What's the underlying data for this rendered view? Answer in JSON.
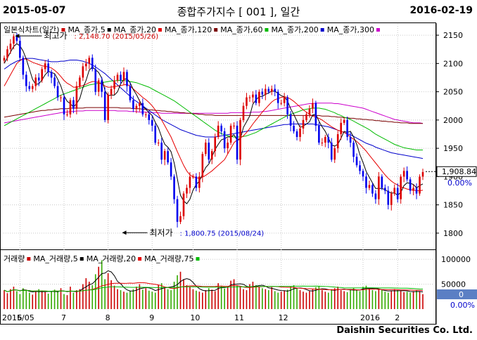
{
  "header": {
    "start_date": "2015-05-07",
    "title": "종합주가지수 [ 001 ], 일간",
    "end_date": "2016-02-19"
  },
  "footer": {
    "brand": "Daishin Securities Co. Ltd."
  },
  "price_legend": [
    {
      "label": "일본식차트(일간)",
      "color": "#cc0000"
    },
    {
      "label": "MA_종가,5",
      "color": "#000000"
    },
    {
      "label": "MA_종가,20",
      "color": "#e60000"
    },
    {
      "label": "MA_종가,120",
      "color": "#7a0000"
    },
    {
      "label": "MA_종가,60",
      "color": "#00bb00"
    },
    {
      "label": "MA_종가,200",
      "color": "#0000cc"
    },
    {
      "label": "MA_종가,300",
      "color": "#cc00cc"
    }
  ],
  "volume_legend": [
    {
      "label": "거래량",
      "color": "#cc0000"
    },
    {
      "label": "MA_거래량,5",
      "color": "#000000"
    },
    {
      "label": "MA_거래량,20",
      "color": "#e60000"
    },
    {
      "label": "MA_거래량,75",
      "color": "#00bb00"
    }
  ],
  "annotations": {
    "high": "최고가 : 2,148.70 (2015/05/26)",
    "low": "최저가 : 1,800.75 (2015/08/24)"
  },
  "price_tag": {
    "value": "1,908.84",
    "change": "0.00%"
  },
  "volume_tag": {
    "value": "0",
    "change": "0.00%"
  },
  "chart_data": {
    "type": "line",
    "title": "종합주가지수 [ 001 ], 일간",
    "price_axis": {
      "ylim": [
        1775,
        2165
      ],
      "ticks": [
        1800,
        1850,
        1900,
        1950,
        2000,
        2050,
        2100,
        2150
      ]
    },
    "volume_axis": {
      "ticks": [
        "100000",
        "50000"
      ]
    },
    "x_ticks": [
      "2015/05",
      "6",
      "7",
      "8",
      "9",
      "10",
      "11",
      "12",
      "2016",
      "2"
    ],
    "grid": true,
    "close": [
      2110,
      2125,
      2135,
      2148,
      2140,
      2110,
      2080,
      2060,
      2055,
      2060,
      2075,
      2070,
      2090,
      2100,
      2085,
      2075,
      2060,
      2040,
      2040,
      2010,
      2010,
      2035,
      2020,
      2060,
      2075,
      2095,
      2100,
      2110,
      2090,
      2050,
      2070,
      2050,
      2000,
      2045,
      2055,
      2070,
      2080,
      2070,
      2085,
      2060,
      2035,
      2020,
      2025,
      2030,
      2010,
      2010,
      2000,
      1990,
      1960,
      1960,
      1930,
      1945,
      1925,
      1900,
      1860,
      1820,
      1830,
      1870,
      1880,
      1900,
      1900,
      1880,
      1900,
      1940,
      1960,
      1930,
      1945,
      1970,
      1990,
      1980,
      1950,
      1960,
      1990,
      1990,
      1930,
      2000,
      2025,
      2040,
      2040,
      2045,
      2030,
      2050,
      2045,
      2055,
      2050,
      2055,
      2050,
      2030,
      2030,
      2040,
      2010,
      1990,
      1980,
      1970,
      1985,
      2000,
      2010,
      2020,
      2030,
      1990,
      1960,
      1960,
      1970,
      1960,
      1930,
      1950,
      1975,
      1995,
      2000,
      1970,
      1960,
      1935,
      1920,
      1910,
      1900,
      1880,
      1885,
      1870,
      1860,
      1900,
      1880,
      1875,
      1850,
      1870,
      1880,
      1860,
      1900,
      1910,
      1895,
      1875,
      1880,
      1870,
      1900,
      1908
    ],
    "series": [
      {
        "name": "MA_종가,5",
        "values": [
          2100,
          2110,
          2120,
          2130,
          2135,
          2131,
          2122,
          2108,
          2090,
          2072,
          2063,
          2064,
          2071,
          2080,
          2086,
          2084,
          2082,
          2072,
          2060,
          2043,
          2033,
          2029,
          2023,
          2029,
          2038,
          2057,
          2070,
          2088,
          2094,
          2089,
          2084,
          2074,
          2052,
          2043,
          2044,
          2044,
          2050,
          2064,
          2072,
          2073,
          2066,
          2054,
          2045,
          2034,
          2024,
          2019,
          2013,
          2008,
          1996,
          1986,
          1970,
          1957,
          1952,
          1944,
          1924,
          1896,
          1867,
          1857,
          1852,
          1860,
          1876,
          1886,
          1892,
          1904,
          1916,
          1922,
          1935,
          1948,
          1957,
          1965,
          1967,
          1970,
          1970,
          1974,
          1964,
          1966,
          1987,
          1997,
          2007,
          2028,
          2036,
          2041,
          2042,
          2045,
          2048,
          2051,
          2051,
          2047,
          2043,
          2041,
          2034,
          2020,
          2010,
          1998,
          1987,
          1989,
          1993,
          1997,
          2009,
          2010,
          1998,
          1988,
          1980,
          1968,
          1956,
          1954,
          1957,
          1968,
          1980,
          1978,
          1980,
          1970,
          1957,
          1939,
          1925,
          1909,
          1899,
          1889,
          1879,
          1879,
          1879,
          1877,
          1873,
          1871,
          1871,
          1867,
          1872,
          1884,
          1889,
          1888,
          1886,
          1880,
          1884,
          1887
        ]
      },
      {
        "name": "MA_종가,20",
        "values": [
          2060,
          2070,
          2080,
          2090,
          2100,
          2105,
          2108,
          2108,
          2105,
          2102,
          2100,
          2098,
          2096,
          2095,
          2094,
          2092,
          2088,
          2083,
          2077,
          2070,
          2065,
          2062,
          2058,
          2058,
          2059,
          2061,
          2063,
          2066,
          2068,
          2068,
          2066,
          2063,
          2060,
          2058,
          2058,
          2059,
          2060,
          2061,
          2062,
          2063,
          2060,
          2055,
          2050,
          2045,
          2040,
          2036,
          2031,
          2025,
          2018,
          2010,
          2000,
          1990,
          1980,
          1970,
          1957,
          1944,
          1932,
          1920,
          1910,
          1903,
          1900,
          1898,
          1897,
          1899,
          1902,
          1906,
          1910,
          1915,
          1920,
          1925,
          1930,
          1940,
          1950,
          1960,
          1965,
          1968,
          1972,
          1978,
          1985,
          1993,
          2000,
          2007,
          2014,
          2020,
          2026,
          2032,
          2036,
          2038,
          2040,
          2041,
          2040,
          2037,
          2033,
          2028,
          2023,
          2018,
          2014,
          2010,
          2007,
          2005,
          2003,
          2000,
          1996,
          1992,
          1988,
          1985,
          1982,
          1980,
          1978,
          1975,
          1970,
          1966,
          1962,
          1957,
          1951,
          1945,
          1938,
          1931,
          1924,
          1917,
          1910,
          1903,
          1897,
          1892,
          1888,
          1885,
          1882,
          1880,
          1878,
          1877,
          1876,
          1875,
          1875,
          1876
        ]
      },
      {
        "name": "MA_종가,60",
        "values": [
          1990,
          1993,
          1996,
          1999,
          2002,
          2005,
          2008,
          2011,
          2014,
          2017,
          2020,
          2023,
          2026,
          2029,
          2032,
          2035,
          2038,
          2041,
          2044,
          2046,
          2048,
          2050,
          2052,
          2054,
          2056,
          2058,
          2060,
          2062,
          2063,
          2064,
          2065,
          2066,
          2067,
          2068,
          2069,
          2069,
          2070,
          2070,
          2070,
          2069,
          2068,
          2067,
          2066,
          2064,
          2062,
          2060,
          2058,
          2055,
          2052,
          2049,
          2046,
          2043,
          2040,
          2037,
          2034,
          2030,
          2026,
          2022,
          2018,
          2014,
          2010,
          2006,
          2002,
          1998,
          1994,
          1990,
          1986,
          1982,
          1979,
          1976,
          1974,
          1972,
          1971,
          1970,
          1970,
          1970,
          1971,
          1972,
          1974,
          1976,
          1978,
          1981,
          1984,
          1987,
          1990,
          1993,
          1996,
          1999,
          2002,
          2005,
          2008,
          2010,
          2012,
          2014,
          2016,
          2018,
          2019,
          2020,
          2021,
          2021,
          2021,
          2020,
          2019,
          2017,
          2015,
          2013,
          2010,
          2008,
          2005,
          2003,
          2001,
          1998,
          1995,
          1992,
          1989,
          1986,
          1983,
          1979,
          1975,
          1972,
          1969,
          1966,
          1963,
          1960,
          1957,
          1955,
          1953,
          1951,
          1950,
          1949,
          1948,
          1947,
          1947,
          1947
        ]
      },
      {
        "name": "MA_종가,120",
        "values": [
          2005,
          2006,
          2007,
          2008,
          2009,
          2010,
          2011,
          2012,
          2013,
          2014,
          2015,
          2016,
          2017,
          2017,
          2018,
          2018,
          2019,
          2019,
          2020,
          2020,
          2020,
          2021,
          2021,
          2021,
          2021,
          2021,
          2022,
          2022,
          2022,
          2022,
          2022,
          2022,
          2022,
          2022,
          2022,
          2022,
          2022,
          2021,
          2021,
          2021,
          2021,
          2020,
          2020,
          2020,
          2019,
          2019,
          2018,
          2018,
          2017,
          2017,
          2016,
          2016,
          2015,
          2015,
          2014,
          2014,
          2013,
          2013,
          2012,
          2012,
          2011,
          2011,
          2010,
          2010,
          2009,
          2009,
          2009,
          2008,
          2008,
          2008,
          2008,
          2008,
          2008,
          2008,
          2008,
          2008,
          2008,
          2008,
          2008,
          2008,
          2008,
          2008,
          2008,
          2008,
          2008,
          2008,
          2008,
          2008,
          2008,
          2008,
          2008,
          2008,
          2008,
          2008,
          2008,
          2008,
          2008,
          2008,
          2008,
          2008,
          2008,
          2007,
          2007,
          2007,
          2006,
          2006,
          2005,
          2005,
          2004,
          2004,
          2003,
          2003,
          2002,
          2002,
          2001,
          2001,
          2000,
          2000,
          1999,
          1999,
          1998,
          1998,
          1997,
          1997,
          1996,
          1996,
          1995,
          1995,
          1995,
          1994,
          1994,
          1994,
          1994,
          1994
        ]
      },
      {
        "name": "MA_종가,200",
        "values": [
          2090,
          2094,
          2098,
          2101,
          2104,
          2106,
          2108,
          2109,
          2109,
          2109,
          2108,
          2107,
          2106,
          2105,
          2104,
          2103,
          2103,
          2103,
          2104,
          2104,
          2105,
          2106,
          2106,
          2106,
          2105,
          2104,
          2102,
          2100,
          2097,
          2094,
          2090,
          2086,
          2082,
          2077,
          2072,
          2067,
          2062,
          2057,
          2052,
          2047,
          2042,
          2037,
          2033,
          2029,
          2025,
          2021,
          2017,
          2013,
          2009,
          2005,
          2001,
          1998,
          1995,
          1992,
          1989,
          1986,
          1983,
          1981,
          1979,
          1977,
          1975,
          1973,
          1972,
          1971,
          1970,
          1970,
          1970,
          1970,
          1971,
          1972,
          1973,
          1974,
          1975,
          1976,
          1977,
          1978,
          1979,
          1980,
          1981,
          1982,
          1983,
          1984,
          1985,
          1986,
          1987,
          1988,
          1989,
          1990,
          1991,
          1992,
          1992,
          1993,
          1993,
          1993,
          1993,
          1993,
          1993,
          1993,
          1993,
          1992,
          1991,
          1990,
          1989,
          1988,
          1986,
          1984,
          1982,
          1980,
          1978,
          1976,
          1974,
          1971,
          1968,
          1965,
          1962,
          1959,
          1957,
          1955,
          1952,
          1950,
          1948,
          1946,
          1944,
          1942,
          1941,
          1940,
          1939,
          1938,
          1937,
          1936,
          1935,
          1934,
          1933,
          1932
        ]
      },
      {
        "name": "MA_종가,300",
        "values": [
          1995,
          1996,
          1997,
          1998,
          1999,
          2000,
          2001,
          2002,
          2003,
          2004,
          2005,
          2006,
          2007,
          2008,
          2009,
          2010,
          2011,
          2012,
          2013,
          2014,
          2014,
          2015,
          2015,
          2016,
          2016,
          2016,
          2017,
          2017,
          2017,
          2017,
          2017,
          2017,
          2017,
          2017,
          2017,
          2017,
          2016,
          2016,
          2016,
          2016,
          2015,
          2015,
          2015,
          2014,
          2014,
          2014,
          2013,
          2013,
          2013,
          2013,
          2012,
          2012,
          2012,
          2012,
          2012,
          2012,
          2012,
          2012,
          2012,
          2012,
          2012,
          2012,
          2012,
          2012,
          2012,
          2012,
          2012,
          2012,
          2012,
          2012,
          2012,
          2012,
          2013,
          2013,
          2013,
          2013,
          2013,
          2013,
          2013,
          2014,
          2014,
          2014,
          2015,
          2015,
          2016,
          2017,
          2018,
          2019,
          2020,
          2021,
          2022,
          2023,
          2024,
          2025,
          2026,
          2027,
          2028,
          2029,
          2029,
          2030,
          2030,
          2030,
          2030,
          2030,
          2030,
          2029,
          2029,
          2028,
          2027,
          2026,
          2025,
          2024,
          2023,
          2022,
          2021,
          2019,
          2017,
          2015,
          2013,
          2011,
          2009,
          2007,
          2005,
          2003,
          2001,
          2000,
          1999,
          1998,
          1997,
          1996,
          1995,
          1995,
          1995,
          1994
        ]
      }
    ],
    "volume": [
      38,
      32,
      40,
      45,
      36,
      30,
      42,
      38,
      33,
      29,
      35,
      40,
      37,
      34,
      31,
      36,
      39,
      35,
      42,
      30,
      28,
      45,
      33,
      38,
      40,
      50,
      62,
      55,
      48,
      70,
      85,
      98,
      60,
      72,
      58,
      47,
      40,
      38,
      35,
      33,
      36,
      40,
      45,
      50,
      39,
      42,
      37,
      35,
      33,
      48,
      52,
      45,
      40,
      38,
      55,
      68,
      75,
      60,
      48,
      45,
      40,
      37,
      35,
      33,
      38,
      42,
      39,
      36,
      52,
      47,
      41,
      45,
      57,
      60,
      48,
      44,
      40,
      38,
      50,
      55,
      48,
      45,
      42,
      40,
      38,
      44,
      36,
      33,
      35,
      37,
      39,
      45,
      48,
      42,
      38,
      35,
      33,
      36,
      40,
      44,
      46,
      38,
      35,
      33,
      40,
      42,
      45,
      38,
      36,
      34,
      40,
      43,
      38,
      36,
      45,
      47,
      42,
      38,
      36,
      40,
      38,
      35,
      33,
      37,
      40,
      38,
      36,
      34,
      35,
      33,
      36,
      38,
      35,
      30
    ]
  }
}
